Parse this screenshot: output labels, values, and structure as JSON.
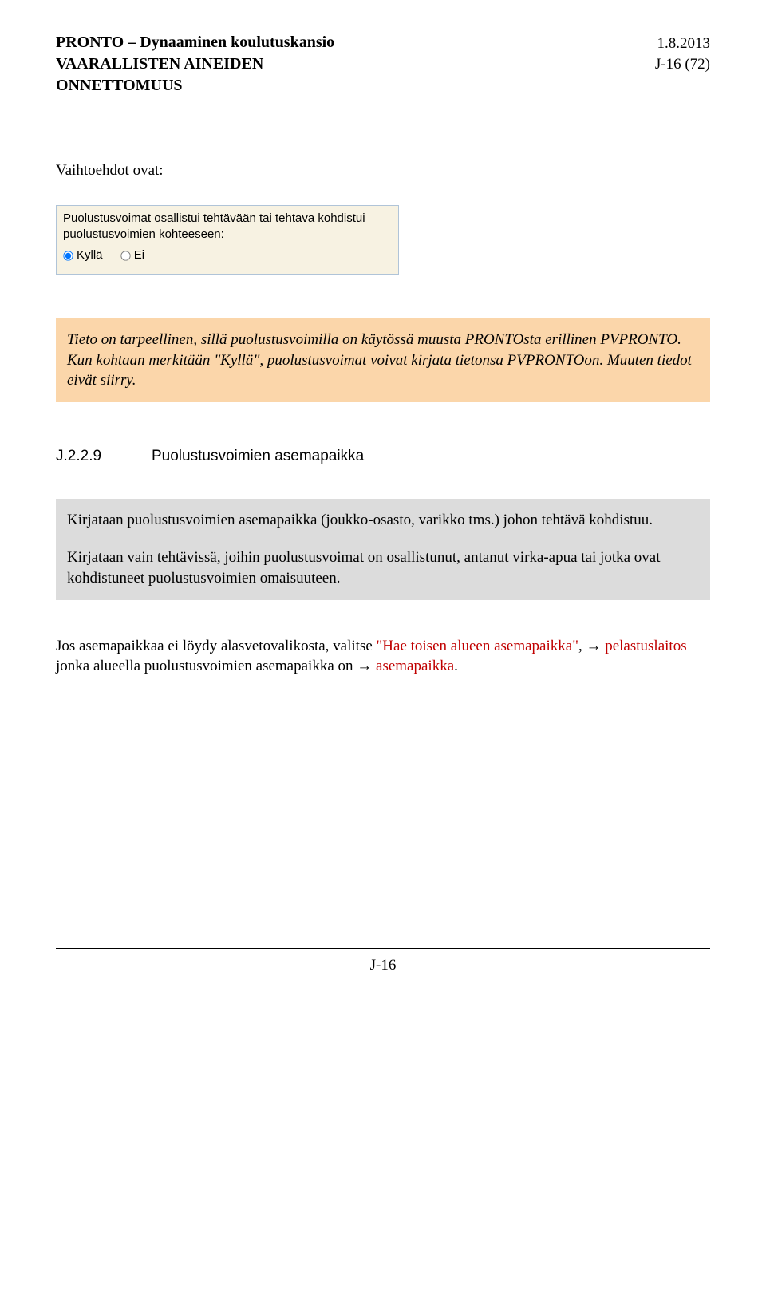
{
  "header": {
    "title_line1": "PRONTO – Dynaaminen koulutuskansio",
    "title_line2": "VAARALLISTEN AINEIDEN",
    "title_line3": "ONNETTOMUUS",
    "date": "1.8.2013",
    "pagecode": "J-16 (72)"
  },
  "lead": "Vaihtoehdot ovat:",
  "uibox": {
    "question_l1": "Puolustusvoimat osallistui tehtävään tai tehtava kohdistui",
    "question_l2": "puolustusvoimien kohteeseen:",
    "opt_yes": "Kyllä",
    "opt_no": "Ei"
  },
  "orange": {
    "p1_a": "Tieto on tarpeellinen, sillä puolustusvoimilla on käytössä muusta PRONTOsta erillinen PVPRONTO. Kun kohtaan merkitään ",
    "p1_kylla": "\"Kyllä\"",
    "p1_b": ", puolustusvoimat voivat kirjata tietonsa PVPRONTOon. Muuten tiedot eivät siirry."
  },
  "section": {
    "num": "J.2.2.9",
    "title": "Puolustusvoimien asemapaikka"
  },
  "gray": {
    "p1": "Kirjataan puolustusvoimien asemapaikka (joukko-osasto, varikko tms.) johon tehtävä kohdistuu.",
    "p2": "Kirjataan vain tehtävissä, joihin puolustusvoimat on osallistunut, antanut virka-apua tai jotka ovat kohdistuneet puolustusvoimien omaisuuteen."
  },
  "body": {
    "pre": "Jos asemapaikkaa ei löydy alasvetovalikosta, valitse ",
    "red1": "\"Hae toisen alueen asemapaikka\"",
    "mid": ", → ",
    "red2": "pelastuslaitos",
    "mid2": " jonka alueella puolustusvoimien asemapaikka on → ",
    "red3": "asemapaikka",
    "end": "."
  },
  "footer": {
    "pagenum": "J-16"
  },
  "colors": {
    "orange_bg": "#fbd6aa",
    "gray_bg": "#dcdcdc",
    "uibox_bg": "#f7f2e2",
    "uibox_border": "#b0c4d8",
    "red_text": "#c00000"
  }
}
